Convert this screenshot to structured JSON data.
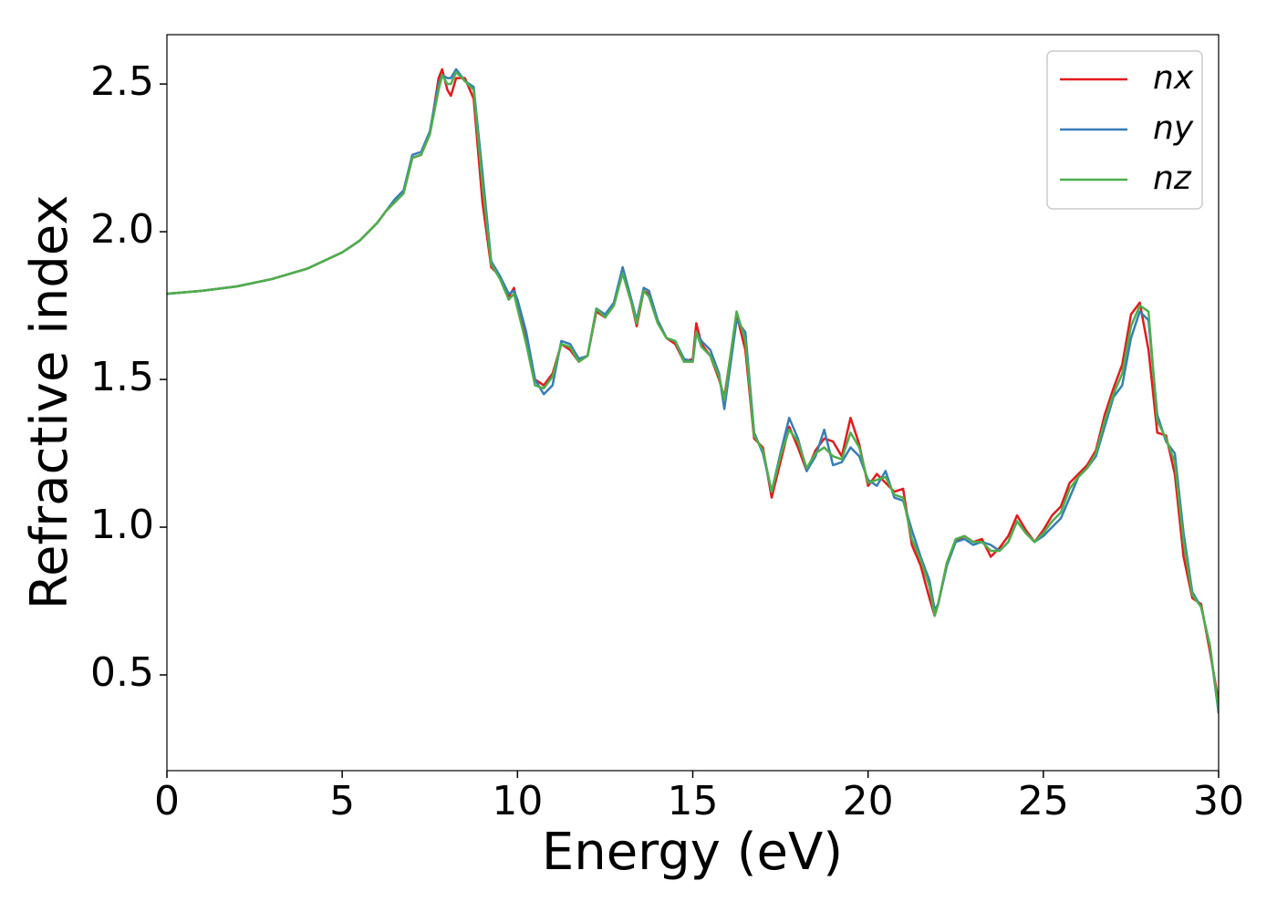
{
  "chart_data": {
    "type": "line",
    "xlabel": "Energy (eV)",
    "ylabel": "Refractive index",
    "x": [
      0,
      1,
      2,
      3,
      4,
      5,
      5.5,
      6,
      6.25,
      6.5,
      6.75,
      7,
      7.25,
      7.5,
      7.75,
      7.85,
      8,
      8.1,
      8.25,
      8.5,
      8.75,
      9,
      9.25,
      9.5,
      9.75,
      9.9,
      10,
      10.25,
      10.5,
      10.75,
      11,
      11.25,
      11.5,
      11.75,
      12,
      12.25,
      12.5,
      12.75,
      13,
      13.25,
      13.4,
      13.6,
      13.75,
      14,
      14.25,
      14.5,
      14.75,
      15,
      15.1,
      15.25,
      15.5,
      15.75,
      15.9,
      16.25,
      16.5,
      16.75,
      17,
      17.25,
      17.5,
      17.75,
      18,
      18.25,
      18.5,
      18.75,
      19,
      19.25,
      19.5,
      19.75,
      20,
      20.25,
      20.5,
      20.75,
      21,
      21.25,
      21.5,
      21.75,
      21.9,
      22,
      22.25,
      22.5,
      22.75,
      23,
      23.25,
      23.5,
      23.75,
      24,
      24.25,
      24.5,
      24.75,
      25,
      25.25,
      25.5,
      25.75,
      26,
      26.25,
      26.5,
      26.75,
      27,
      27.25,
      27.5,
      27.75,
      28,
      28.25,
      28.5,
      28.75,
      29,
      29.25,
      29.5,
      29.75,
      30
    ],
    "series": [
      {
        "name": "nx",
        "color": "#e41a1c",
        "values": [
          1.79,
          1.8,
          1.815,
          1.84,
          1.875,
          1.93,
          1.97,
          2.03,
          2.07,
          2.1,
          2.13,
          2.25,
          2.26,
          2.33,
          2.52,
          2.55,
          2.48,
          2.46,
          2.52,
          2.52,
          2.45,
          2.1,
          1.88,
          1.85,
          1.78,
          1.81,
          1.75,
          1.63,
          1.5,
          1.48,
          1.52,
          1.62,
          1.6,
          1.56,
          1.58,
          1.73,
          1.71,
          1.76,
          1.86,
          1.76,
          1.68,
          1.8,
          1.79,
          1.7,
          1.64,
          1.62,
          1.56,
          1.57,
          1.69,
          1.62,
          1.58,
          1.5,
          1.44,
          1.72,
          1.6,
          1.3,
          1.27,
          1.1,
          1.22,
          1.34,
          1.27,
          1.19,
          1.26,
          1.3,
          1.29,
          1.24,
          1.37,
          1.28,
          1.14,
          1.18,
          1.15,
          1.12,
          1.13,
          0.94,
          0.87,
          0.76,
          0.7,
          0.74,
          0.88,
          0.95,
          0.97,
          0.95,
          0.96,
          0.9,
          0.93,
          0.97,
          1.04,
          0.99,
          0.95,
          0.99,
          1.04,
          1.07,
          1.15,
          1.18,
          1.21,
          1.26,
          1.38,
          1.47,
          1.55,
          1.72,
          1.76,
          1.6,
          1.32,
          1.31,
          1.18,
          0.9,
          0.76,
          0.74,
          0.58,
          0.41
        ]
      },
      {
        "name": "ny",
        "color": "#377eb8",
        "values": [
          1.79,
          1.8,
          1.815,
          1.84,
          1.875,
          1.93,
          1.97,
          2.03,
          2.07,
          2.11,
          2.14,
          2.26,
          2.27,
          2.34,
          2.5,
          2.53,
          2.52,
          2.52,
          2.55,
          2.51,
          2.49,
          2.2,
          1.9,
          1.85,
          1.79,
          1.8,
          1.77,
          1.66,
          1.5,
          1.45,
          1.48,
          1.63,
          1.62,
          1.57,
          1.58,
          1.74,
          1.72,
          1.76,
          1.88,
          1.77,
          1.7,
          1.81,
          1.8,
          1.7,
          1.64,
          1.63,
          1.57,
          1.56,
          1.66,
          1.63,
          1.6,
          1.52,
          1.4,
          1.7,
          1.66,
          1.32,
          1.25,
          1.12,
          1.25,
          1.37,
          1.3,
          1.19,
          1.24,
          1.33,
          1.21,
          1.22,
          1.27,
          1.24,
          1.16,
          1.14,
          1.19,
          1.1,
          1.09,
          0.99,
          0.9,
          0.82,
          0.72,
          0.74,
          0.87,
          0.95,
          0.96,
          0.94,
          0.95,
          0.94,
          0.92,
          0.95,
          1.02,
          0.98,
          0.95,
          0.97,
          1.0,
          1.03,
          1.1,
          1.17,
          1.2,
          1.24,
          1.34,
          1.44,
          1.48,
          1.64,
          1.73,
          1.7,
          1.38,
          1.29,
          1.25,
          0.98,
          0.78,
          0.73,
          0.6,
          0.37
        ]
      },
      {
        "name": "nz",
        "color": "#4daf4a",
        "values": [
          1.79,
          1.8,
          1.815,
          1.84,
          1.875,
          1.93,
          1.97,
          2.03,
          2.07,
          2.1,
          2.13,
          2.25,
          2.26,
          2.33,
          2.48,
          2.53,
          2.5,
          2.5,
          2.54,
          2.51,
          2.48,
          2.16,
          1.89,
          1.84,
          1.77,
          1.79,
          1.74,
          1.62,
          1.48,
          1.47,
          1.51,
          1.62,
          1.61,
          1.56,
          1.58,
          1.74,
          1.71,
          1.75,
          1.86,
          1.76,
          1.69,
          1.8,
          1.78,
          1.69,
          1.64,
          1.63,
          1.56,
          1.56,
          1.66,
          1.61,
          1.58,
          1.51,
          1.43,
          1.73,
          1.63,
          1.31,
          1.26,
          1.12,
          1.24,
          1.33,
          1.29,
          1.2,
          1.25,
          1.27,
          1.24,
          1.23,
          1.32,
          1.27,
          1.15,
          1.16,
          1.17,
          1.11,
          1.1,
          0.96,
          0.89,
          0.8,
          0.7,
          0.74,
          0.88,
          0.96,
          0.97,
          0.95,
          0.95,
          0.92,
          0.92,
          0.95,
          1.02,
          0.98,
          0.95,
          0.98,
          1.02,
          1.05,
          1.13,
          1.17,
          1.2,
          1.25,
          1.36,
          1.45,
          1.52,
          1.68,
          1.75,
          1.73,
          1.36,
          1.3,
          1.22,
          0.95,
          0.77,
          0.73,
          0.6,
          0.38
        ]
      }
    ],
    "xlim": [
      0,
      30
    ],
    "xticks": [
      0,
      5,
      10,
      15,
      20,
      25,
      30
    ],
    "ylim": [
      0.176,
      2.667
    ],
    "yticks": [
      0.5,
      {
        "value": 1,
        "label": "1.0"
      },
      1.5,
      {
        "value": 2,
        "label": "2.0"
      },
      2.5
    ],
    "grid": false,
    "legend": "upper right"
  }
}
